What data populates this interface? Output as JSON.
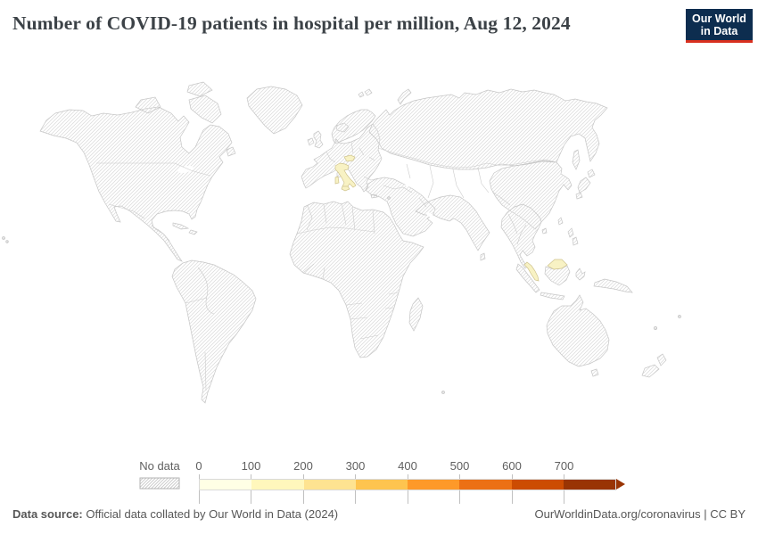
{
  "header": {
    "title": "Number of COVID-19 patients in hospital per million, Aug 12, 2024"
  },
  "logo": {
    "line1": "Our World",
    "line2": "in Data",
    "bg_color": "#0d2d4f",
    "bar_color": "#d8301f"
  },
  "map": {
    "hatch_color": "#dedede",
    "coast_color": "#c6c6c6",
    "border_color": "#cccccc",
    "highlight_fill": "#f8f2c4",
    "highlight_stroke": "#cfc38d",
    "highlighted_countries": [
      {
        "id": "italy",
        "name": "Italy"
      },
      {
        "id": "czechia",
        "name": "Czechia"
      },
      {
        "id": "malaysia",
        "name": "Malaysia"
      }
    ]
  },
  "legend": {
    "no_data_label": "No data",
    "swatch_hatch_color": "#c6c6c6",
    "swatch_border_color": "#b3b3b3",
    "ticks": [
      "0",
      "100",
      "200",
      "300",
      "400",
      "500",
      "600",
      "700"
    ],
    "bins": [
      {
        "range": "0-100",
        "color": "#ffffe5"
      },
      {
        "range": "100-200",
        "color": "#fff7bc"
      },
      {
        "range": "200-300",
        "color": "#fee391"
      },
      {
        "range": "300-400",
        "color": "#fec44f"
      },
      {
        "range": "400-500",
        "color": "#fe9929"
      },
      {
        "range": "500-600",
        "color": "#ec7014"
      },
      {
        "range": "600-700",
        "color": "#cc4c02"
      },
      {
        "range": "700+",
        "color": "#993404"
      }
    ]
  },
  "footer": {
    "source_label": "Data source:",
    "source_text": " Official data collated by Our World in Data (2024)",
    "link_text": "OurWorldinData.org/coronavirus | CC BY"
  }
}
